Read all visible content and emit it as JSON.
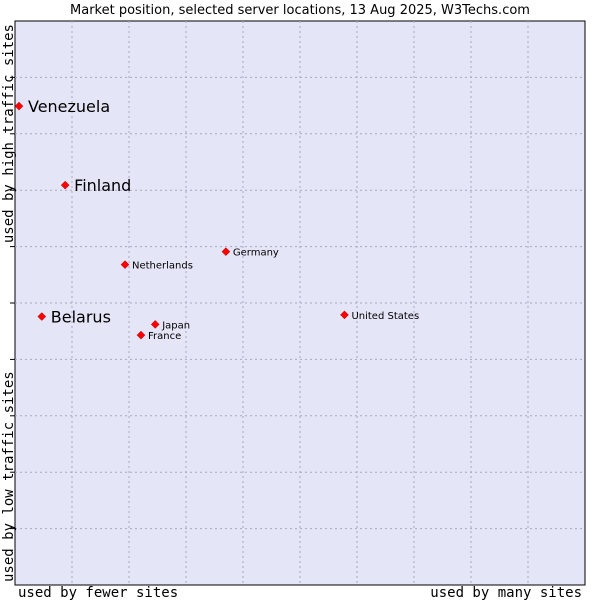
{
  "chart_data": {
    "type": "scatter",
    "title": "Market position, selected server locations, 13 Aug 2025, W3Techs.com",
    "xlabel_left": "used by fewer sites",
    "xlabel_right": "used by many sites",
    "ylabel_bottom": "used by low traffic sites",
    "ylabel_top": "used by high traffic sites",
    "xlim": [
      0,
      100
    ],
    "ylim": [
      0,
      100
    ],
    "grid": true,
    "point_color": "#ff0000",
    "plot_bg": "#e4e6f8",
    "points": [
      {
        "name": "Venezuela",
        "x": 0.7,
        "y": 84.9,
        "label_size": "large"
      },
      {
        "name": "Finland",
        "x": 8.8,
        "y": 70.9,
        "label_size": "large"
      },
      {
        "name": "Germany",
        "x": 37.0,
        "y": 59.1,
        "label_size": "small"
      },
      {
        "name": "Netherlands",
        "x": 19.3,
        "y": 56.8,
        "label_size": "small"
      },
      {
        "name": "Belarus",
        "x": 4.7,
        "y": 47.6,
        "label_size": "large"
      },
      {
        "name": "United States",
        "x": 57.8,
        "y": 47.9,
        "label_size": "small"
      },
      {
        "name": "Japan",
        "x": 24.6,
        "y": 46.2,
        "label_size": "small"
      },
      {
        "name": "France",
        "x": 22.1,
        "y": 44.3,
        "label_size": "small"
      }
    ]
  }
}
